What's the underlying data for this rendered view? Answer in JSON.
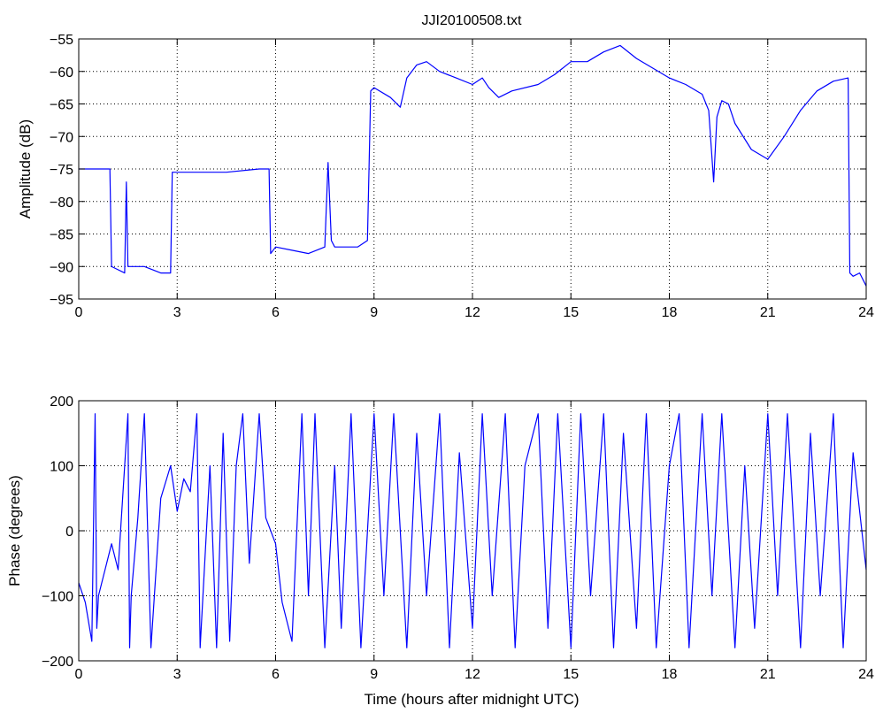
{
  "figure_title": "JJI20100508.txt",
  "colors": {
    "series": "#0000ff",
    "axes": "#000000",
    "grid": "#000000",
    "background": "#ffffff"
  },
  "chart_data": [
    {
      "type": "line",
      "title": "JJI20100508.txt",
      "xlabel": "",
      "ylabel": "Amplitude (dB)",
      "xlim": [
        0,
        24
      ],
      "ylim": [
        -95,
        -55
      ],
      "xticks": [
        "0",
        "3",
        "6",
        "9",
        "12",
        "15",
        "18",
        "21",
        "24"
      ],
      "yticks": [
        "-55",
        "-60",
        "-65",
        "-70",
        "-75",
        "-80",
        "-85",
        "-90",
        "-95"
      ],
      "grid": true,
      "series": [
        {
          "x": [
            0,
            0.95,
            1.0,
            1.4,
            1.45,
            1.5,
            2.0,
            2.5,
            2.8,
            2.85,
            3.5,
            4.5,
            5.5,
            5.8,
            5.85,
            6.0,
            6.5,
            7.0,
            7.5,
            7.6,
            7.7,
            7.8,
            8.5,
            8.8,
            8.9,
            9.0,
            9.5,
            9.8,
            10.0,
            10.3,
            10.6,
            11.0,
            11.5,
            12.0,
            12.3,
            12.5,
            12.8,
            13.2,
            14.0,
            14.5,
            15.0,
            15.5,
            16.0,
            16.5,
            17.0,
            17.5,
            18.0,
            18.5,
            19.0,
            19.2,
            19.35,
            19.45,
            19.6,
            19.8,
            20.0,
            20.5,
            21.0,
            21.5,
            22.0,
            22.5,
            23.0,
            23.45,
            23.5,
            23.6,
            23.8,
            24.0
          ],
          "y": [
            -75,
            -75,
            -90,
            -91,
            -77,
            -90,
            -90,
            -91,
            -91,
            -75.5,
            -75.5,
            -75.5,
            -75,
            -75,
            -88,
            -87,
            -87.5,
            -88,
            -87,
            -74,
            -86,
            -87,
            -87,
            -86,
            -63,
            -62.5,
            -64,
            -65.5,
            -61,
            -59,
            -58.5,
            -60,
            -61,
            -62,
            -61,
            -62.5,
            -64,
            -63,
            -62,
            -60.5,
            -58.5,
            -58.5,
            -57,
            -56,
            -58,
            -59.5,
            -61,
            -62,
            -63.5,
            -66,
            -77,
            -67,
            -64.5,
            -65,
            -68,
            -72,
            -73.5,
            -70,
            -66,
            -63,
            -61.5,
            -61,
            -91,
            -91.5,
            -91,
            -93
          ]
        }
      ]
    },
    {
      "type": "line",
      "title": "",
      "xlabel": "Time (hours after midnight UTC)",
      "ylabel": "Phase (degrees)",
      "xlim": [
        0,
        24
      ],
      "ylim": [
        -200,
        200
      ],
      "xticks": [
        "0",
        "3",
        "6",
        "9",
        "12",
        "15",
        "18",
        "21",
        "24"
      ],
      "yticks": [
        "200",
        "100",
        "0",
        "-100",
        "-200"
      ],
      "grid": true,
      "series": [
        {
          "x": [
            0,
            0.2,
            0.4,
            0.5,
            0.55,
            0.6,
            0.8,
            1.0,
            1.2,
            1.5,
            1.55,
            1.6,
            1.8,
            2.0,
            2.2,
            2.5,
            2.8,
            3.0,
            3.2,
            3.4,
            3.6,
            3.7,
            4.0,
            4.2,
            4.4,
            4.6,
            4.8,
            5.0,
            5.2,
            5.5,
            5.7,
            6.0,
            6.2,
            6.5,
            6.8,
            7.0,
            7.2,
            7.5,
            7.8,
            8.0,
            8.3,
            8.6,
            9.0,
            9.3,
            9.6,
            10.0,
            10.3,
            10.6,
            11.0,
            11.3,
            11.6,
            12.0,
            12.3,
            12.6,
            13.0,
            13.3,
            13.6,
            14.0,
            14.3,
            14.6,
            15.0,
            15.3,
            15.6,
            16.0,
            16.3,
            16.6,
            17.0,
            17.3,
            17.6,
            18.0,
            18.3,
            18.6,
            19.0,
            19.3,
            19.6,
            20.0,
            20.3,
            20.6,
            21.0,
            21.3,
            21.6,
            22.0,
            22.3,
            22.6,
            23.0,
            23.3,
            23.6,
            24.0
          ],
          "y": [
            -80,
            -110,
            -170,
            180,
            -150,
            -100,
            -60,
            -20,
            -60,
            180,
            -180,
            -100,
            20,
            180,
            -180,
            50,
            100,
            30,
            80,
            60,
            180,
            -180,
            100,
            -180,
            150,
            -170,
            100,
            180,
            -50,
            180,
            20,
            -20,
            -110,
            -170,
            180,
            -100,
            180,
            -180,
            100,
            -150,
            180,
            -180,
            180,
            -100,
            180,
            -180,
            150,
            -100,
            180,
            -180,
            120,
            -150,
            180,
            -100,
            180,
            -180,
            100,
            180,
            -150,
            180,
            -180,
            180,
            -100,
            180,
            -180,
            150,
            -150,
            180,
            -180,
            100,
            180,
            -180,
            180,
            -100,
            180,
            -180,
            100,
            -150,
            180,
            -100,
            180,
            -180,
            150,
            -100,
            180,
            -180,
            120,
            -60
          ]
        }
      ]
    }
  ]
}
